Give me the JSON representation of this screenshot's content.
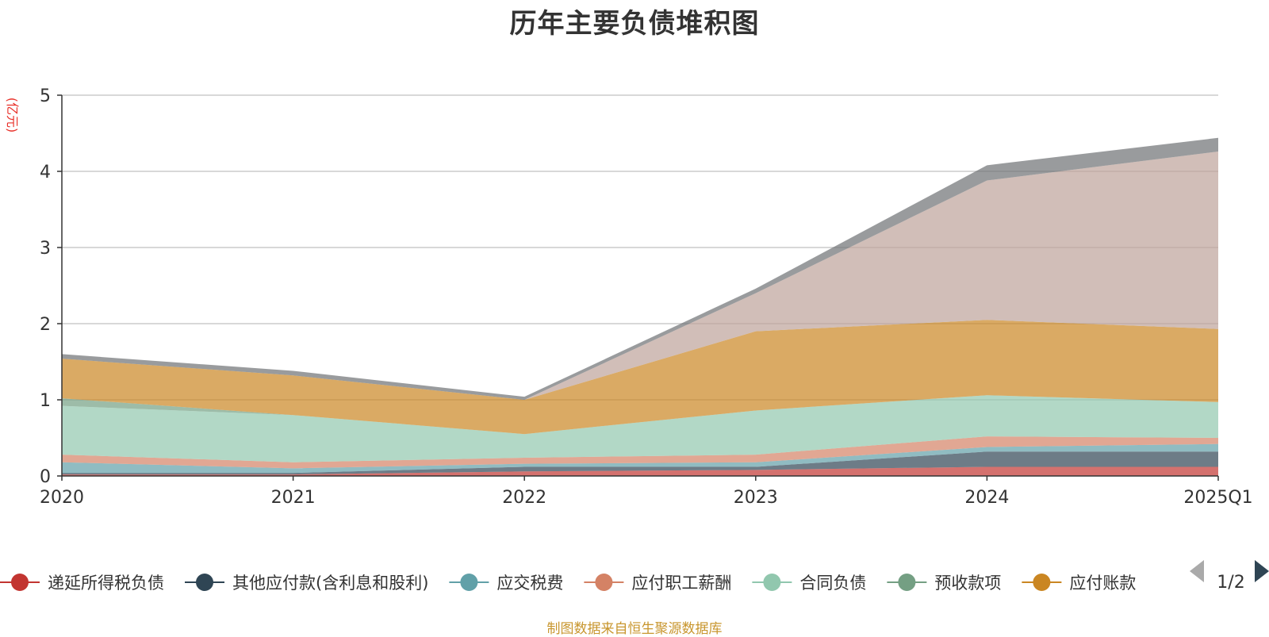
{
  "title": "历年主要负债堆积图",
  "source_note": "制图数据来自恒生聚源数据库",
  "legend_pager": {
    "text": "1/2",
    "prev_icon": "triangle-left-icon",
    "next_icon": "triangle-right-icon",
    "prev_color": "#aaaaaa",
    "next_color": "#2f4554"
  },
  "chart_data": {
    "type": "area",
    "stacked": true,
    "title": "历年主要负债堆积图",
    "unit_label": "(亿元)",
    "x": [
      "2020",
      "2021",
      "2022",
      "2023",
      "2024",
      "2025Q1"
    ],
    "ylim": [
      0,
      5
    ],
    "yticks": [
      0,
      1,
      2,
      3,
      4,
      5
    ],
    "grid": true,
    "legend_position": "bottom",
    "series": [
      {
        "name": "递延所得税负债",
        "color": "#c23531",
        "values": [
          0.02,
          0.02,
          0.06,
          0.08,
          0.12,
          0.12
        ]
      },
      {
        "name": "其他应付款(含利息和股利)",
        "color": "#2f4554",
        "values": [
          0.02,
          0.02,
          0.06,
          0.04,
          0.2,
          0.2
        ]
      },
      {
        "name": "应交税费",
        "color": "#61a0a8",
        "values": [
          0.14,
          0.06,
          0.04,
          0.06,
          0.06,
          0.1
        ]
      },
      {
        "name": "应付职工薪酬",
        "color": "#d48265",
        "values": [
          0.1,
          0.08,
          0.08,
          0.1,
          0.14,
          0.08
        ]
      },
      {
        "name": "合同负债",
        "color": "#91c7ae",
        "values": [
          0.64,
          0.62,
          0.31,
          0.58,
          0.54,
          0.47
        ]
      },
      {
        "name": "预收款项",
        "color": "#749f83",
        "values": [
          0.1,
          0.0,
          0.0,
          0.0,
          0.0,
          0.0
        ]
      },
      {
        "name": "应付账款",
        "color": "#ca8622",
        "values": [
          0.52,
          0.52,
          0.45,
          1.04,
          0.99,
          0.96
        ]
      },
      {
        "name": "",
        "color": "#bda29a",
        "values": [
          0.0,
          0.0,
          0.0,
          0.5,
          1.83,
          2.33
        ]
      },
      {
        "name": "",
        "color": "#6e7074",
        "values": [
          0.06,
          0.06,
          0.04,
          0.06,
          0.2,
          0.18
        ]
      }
    ],
    "legend_visible": [
      {
        "label": "递延所得税负债",
        "color": "#c23531"
      },
      {
        "label": "其他应付款(含利息和股利)",
        "color": "#2f4554"
      },
      {
        "label": "应交税费",
        "color": "#61a0a8"
      },
      {
        "label": "应付职工薪酬",
        "color": "#d48265"
      },
      {
        "label": "合同负债",
        "color": "#91c7ae"
      },
      {
        "label": "预收款项",
        "color": "#749f83"
      },
      {
        "label": "应付账款",
        "color": "#ca8622"
      }
    ]
  }
}
